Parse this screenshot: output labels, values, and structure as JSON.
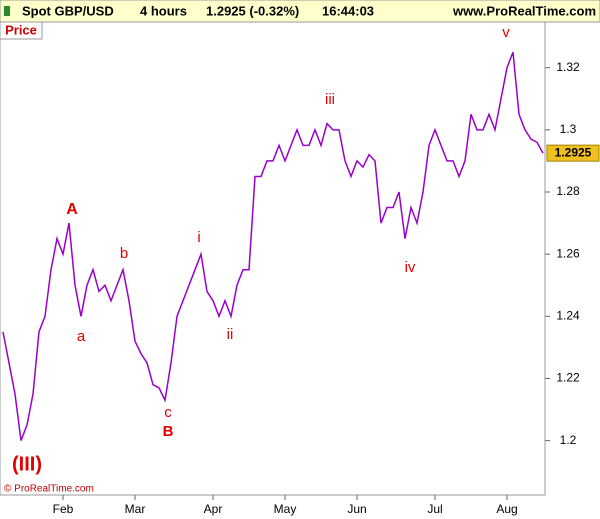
{
  "header": {
    "symbol": "Spot GBP/USD",
    "period": "4 hours",
    "quote": "1.2925 (-0.32%)",
    "time": "16:44:03",
    "site": "www.ProRealTime.com"
  },
  "chart_data": {
    "type": "line",
    "panel_label": "Price",
    "copyright": "© ProRealTime.com",
    "categories": [
      null,
      null,
      null,
      null,
      null,
      null,
      null,
      null,
      null,
      null,
      "Feb",
      null,
      null,
      null,
      null,
      null,
      null,
      null,
      null,
      null,
      null,
      null,
      "Mar",
      null,
      null,
      null,
      null,
      null,
      null,
      null,
      null,
      null,
      null,
      null,
      null,
      "Apr",
      null,
      null,
      null,
      null,
      null,
      null,
      null,
      null,
      null,
      null,
      null,
      "May",
      null,
      null,
      null,
      null,
      null,
      null,
      null,
      null,
      null,
      null,
      null,
      "Jun",
      null,
      null,
      null,
      null,
      null,
      null,
      null,
      null,
      null,
      null,
      null,
      null,
      "Jul",
      null,
      null,
      null,
      null,
      null,
      null,
      null,
      null,
      null,
      null,
      null,
      "Aug",
      null,
      null,
      null,
      null,
      null,
      null
    ],
    "series": [
      {
        "name": "Spot GBP/USD",
        "color": "#9900cc",
        "values": [
          1.235,
          1.225,
          1.215,
          1.2,
          1.205,
          1.215,
          1.235,
          1.24,
          1.255,
          1.265,
          1.26,
          1.27,
          1.25,
          1.24,
          1.25,
          1.255,
          1.248,
          1.25,
          1.245,
          1.25,
          1.255,
          1.245,
          1.232,
          1.228,
          1.225,
          1.218,
          1.217,
          1.213,
          1.225,
          1.24,
          1.245,
          1.25,
          1.255,
          1.26,
          1.248,
          1.245,
          1.24,
          1.245,
          1.24,
          1.25,
          1.255,
          1.255,
          1.285,
          1.285,
          1.29,
          1.29,
          1.295,
          1.29,
          1.295,
          1.3,
          1.295,
          1.295,
          1.3,
          1.295,
          1.302,
          1.3,
          1.3,
          1.29,
          1.285,
          1.29,
          1.288,
          1.292,
          1.29,
          1.27,
          1.275,
          1.275,
          1.28,
          1.265,
          1.275,
          1.27,
          1.28,
          1.295,
          1.3,
          1.295,
          1.29,
          1.29,
          1.285,
          1.29,
          1.305,
          1.3,
          1.3,
          1.305,
          1.3,
          1.31,
          1.32,
          1.325,
          1.305,
          1.3,
          1.297,
          1.296,
          1.2925
        ]
      }
    ],
    "last_price": 1.2925,
    "ylim": [
      1.1825,
      1.3347
    ],
    "yticks": [
      1.2,
      1.22,
      1.24,
      1.26,
      1.28,
      1.3,
      1.32
    ],
    "annotations": [
      "A",
      "a",
      "b",
      "c",
      "B",
      "i",
      "ii",
      "iii",
      "iv",
      "v",
      "(III)"
    ],
    "annotation_color": "#e00000"
  }
}
